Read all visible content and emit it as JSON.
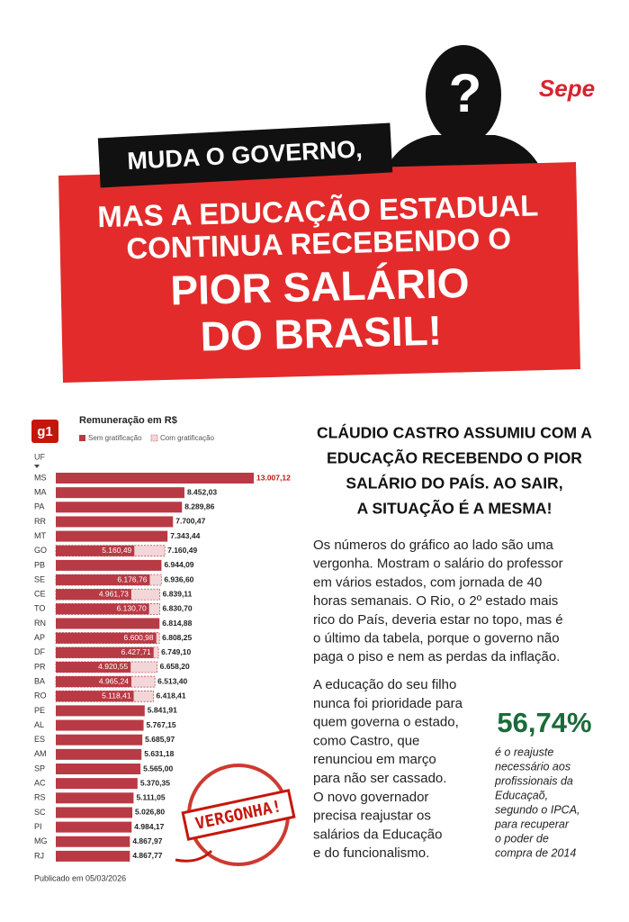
{
  "header": {
    "logo": "Sepe",
    "question": "?",
    "kicker": "MUDA O GOVERNO,",
    "headline_lines": [
      "MAS A EDUCAÇÃO ESTADUAL",
      "CONTINUA RECEBENDO O"
    ],
    "highlight_lines": [
      "PIOR SALÁRIO",
      "DO BRASIL!"
    ]
  },
  "chart_data": {
    "type": "bar",
    "orientation": "horizontal",
    "source_logo": "g1",
    "title": "Remuneração em R$",
    "category_label": "UF",
    "categories": [
      "MS",
      "MA",
      "PA",
      "RR",
      "MT",
      "GO",
      "PB",
      "SE",
      "CE",
      "TO",
      "RN",
      "AP",
      "DF",
      "PR",
      "BA",
      "RO",
      "PE",
      "AL",
      "ES",
      "AM",
      "SP",
      "AC",
      "RS",
      "SC",
      "PI",
      "MG",
      "RJ"
    ],
    "series": [
      {
        "name": "Sem gratificação",
        "color": "#b83a44",
        "values": [
          13007.12,
          8452.03,
          8289.86,
          7700.47,
          7343.44,
          5160.49,
          6944.09,
          6176.76,
          4961.73,
          6130.7,
          6814.88,
          6600.98,
          6427.71,
          4920.55,
          4965.24,
          5118.41,
          5841.91,
          5767.15,
          5685.97,
          5631.18,
          5565.0,
          5370.35,
          5111.05,
          5026.8,
          4984.17,
          4867.97,
          4867.77
        ],
        "value_labels": [
          "13.007,12",
          "8.452,03",
          "8.289,86",
          "7.700,47",
          "7.343,44",
          "5.160,49",
          "6.944,09",
          "6.176,76",
          "4.961,73",
          "6.130,70",
          "6.814,88",
          "6.600,98",
          "6.427,71",
          "4.920,55",
          "4.965,24",
          "5.118,41",
          "5.841,91",
          "5.767,15",
          "5.685,97",
          "5.631,18",
          "5.565,00",
          "5.370,35",
          "5.111,05",
          "5.026,80",
          "4.984,17",
          "4.867,97",
          "4.867,77"
        ]
      },
      {
        "name": "Com gratificação",
        "color": "#f3d6d8",
        "values": [
          null,
          null,
          null,
          null,
          null,
          7160.49,
          null,
          6936.6,
          6839.11,
          6830.7,
          null,
          6808.25,
          6749.1,
          6658.2,
          6513.4,
          6418.41,
          null,
          null,
          null,
          null,
          null,
          null,
          null,
          null,
          null,
          null,
          null
        ],
        "value_labels": [
          null,
          null,
          null,
          null,
          null,
          "7.160,49",
          null,
          "6.936,60",
          "6.839,11",
          "6.830,70",
          null,
          "6.808,25",
          "6.749,10",
          "6.658,20",
          "6.513,40",
          "6.418,41",
          null,
          null,
          null,
          null,
          null,
          null,
          null,
          null,
          null,
          null,
          null
        ]
      }
    ],
    "note": "Publicado em 05/03/2026",
    "stamp": "VERGONHA!"
  },
  "article": {
    "heading_lines": [
      "CLÁUDIO CASTRO ASSUMIU COM A",
      "EDUCAÇÃO RECEBENDO O PIOR",
      "SALÁRIO DO PAÍS. AO SAIR,",
      "A SITUAÇÃO É A MESMA!"
    ],
    "paragraph1_lines": [
      "Os números do gráfico ao lado são uma",
      "vergonha. Mostram o salário do professor",
      "em vários estados, com jornada de 40",
      "horas semanais. O Rio, o 2º estado mais",
      "rico do País, deveria estar no topo, mas é",
      "o último da tabela, porque o governo não",
      "paga o piso e nem as perdas da inflação."
    ],
    "paragraph2_lines": [
      "A educação do seu filho",
      "nunca foi prioridade para",
      "quem governa o estado,",
      "como Castro, que",
      "renunciou em março",
      "para não ser cassado.",
      "O novo governador",
      "precisa reajustar os",
      "salários da Educação",
      "e do funcionalismo."
    ],
    "stat": "56,74%",
    "stat_note_lines": [
      "é o reajuste",
      "necessário aos",
      "profissionais da",
      "Educaçaõ,",
      "segundo o IPCA,",
      "para recuperar",
      "o poder de",
      "compra de 2014"
    ]
  }
}
